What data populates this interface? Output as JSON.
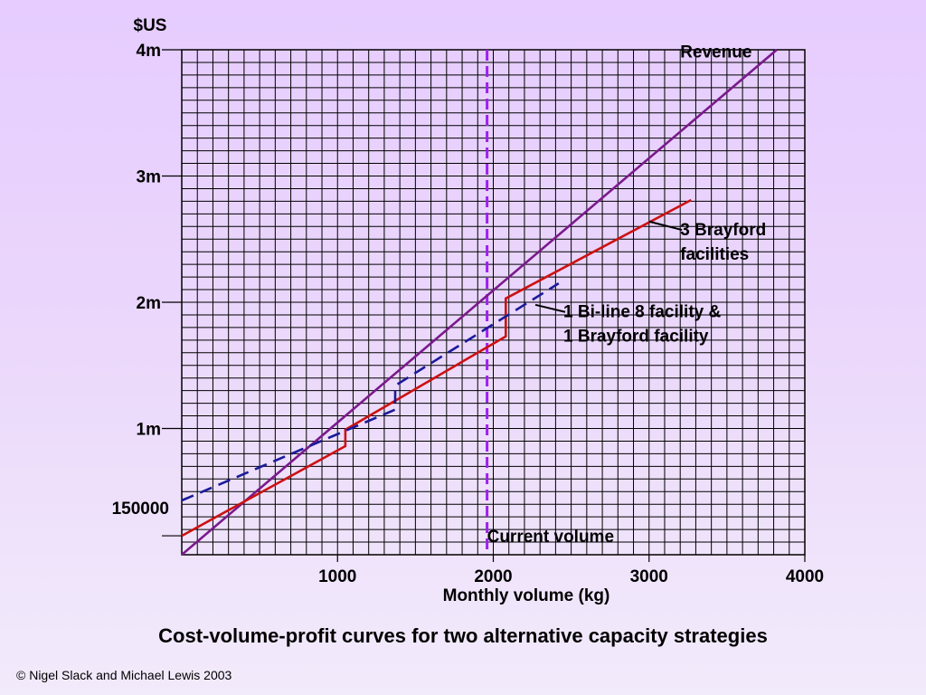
{
  "slide": {
    "caption": "Cost-volume-profit curves for two alternative capacity strategies",
    "copyright": "© Nigel Slack and Michael Lewis 2003"
  },
  "chart_data": {
    "type": "line",
    "xlabel": "Monthly volume (kg)",
    "ylabel": "$US",
    "xlim": [
      0,
      4000
    ],
    "ylim": [
      0,
      4000000
    ],
    "grid": true,
    "x_ticks": [
      {
        "value": 1000,
        "label": "1000"
      },
      {
        "value": 2000,
        "label": "2000"
      },
      {
        "value": 3000,
        "label": "3000"
      },
      {
        "value": 4000,
        "label": "4000"
      }
    ],
    "y_ticks": [
      {
        "value": 150000,
        "label": "150000"
      },
      {
        "value": 1000000,
        "label": "1m"
      },
      {
        "value": 2000000,
        "label": "2m"
      },
      {
        "value": 3000000,
        "label": "3m"
      },
      {
        "value": 4000000,
        "label": "4m"
      }
    ],
    "series": [
      {
        "name": "Revenue",
        "color": "#7a1a8c",
        "style": "solid",
        "points": [
          [
            0,
            0
          ],
          [
            3820,
            4000000
          ]
        ]
      },
      {
        "name": "3 Brayford facilities",
        "color": "#cc1111",
        "style": "solid",
        "points": [
          [
            0,
            150000
          ],
          [
            1050,
            860000
          ],
          [
            1050,
            990000
          ],
          [
            2080,
            1730000
          ],
          [
            2080,
            2030000
          ],
          [
            3270,
            2810000
          ]
        ]
      },
      {
        "name": "1 Bi-line 8 facility & 1 Brayford facility",
        "color": "#1a1a99",
        "style": "dashed",
        "points": [
          [
            0,
            430000
          ],
          [
            1370,
            1150000
          ],
          [
            1370,
            1340000
          ],
          [
            2420,
            2150000
          ]
        ]
      }
    ],
    "reference_lines": [
      {
        "name": "Current volume",
        "axis": "x",
        "value": 1960,
        "color": "#a020f0",
        "style": "dashed"
      }
    ],
    "annotations": [
      {
        "id": "revenue",
        "lines": [
          "Revenue"
        ],
        "at": [
          3200,
          3940000
        ],
        "anchor": "start",
        "leader_to": null
      },
      {
        "id": "brayford3",
        "lines": [
          "3 Brayford",
          "facilities"
        ],
        "at": [
          3200,
          2530000
        ],
        "anchor": "start",
        "leader_to": [
          3000,
          2640000
        ]
      },
      {
        "id": "biline",
        "lines": [
          "1 Bi-line 8 facility &",
          "1 Brayford facility"
        ],
        "at": [
          2450,
          1880000
        ],
        "anchor": "start",
        "leader_to": [
          2270,
          1980000
        ]
      },
      {
        "id": "current",
        "lines": [
          "Current volume"
        ],
        "at": [
          1960,
          100000
        ],
        "anchor": "start",
        "leader_to": null
      }
    ]
  }
}
